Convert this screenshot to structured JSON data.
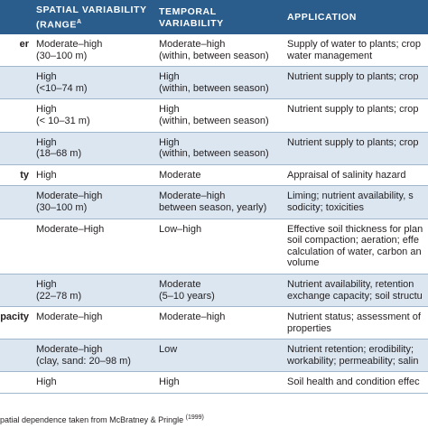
{
  "table": {
    "header": {
      "spatial": {
        "lines": [
          "SPATIAL VARIABILITY",
          "(RANGE"
        ],
        "sup": "A"
      },
      "temporal": {
        "lines": [
          "TEMPORAL",
          "VARIABILITY"
        ]
      },
      "application": "APPLICATION"
    },
    "rows": [
      {
        "property": "er",
        "spatial": [
          "Moderate–high",
          "(30–100 m)"
        ],
        "temporal": [
          "Moderate–high",
          "(within, between season)"
        ],
        "application": [
          "Supply of water to plants; crop",
          "water management"
        ]
      },
      {
        "spatial": [
          "High",
          "(<10–74 m)"
        ],
        "temporal": [
          "High",
          "(within, between season)"
        ],
        "application": [
          "Nutrient supply to plants; crop"
        ]
      },
      {
        "spatial": [
          "High",
          "(< 10–31 m)"
        ],
        "temporal": [
          "High",
          "(within, between season)"
        ],
        "application": [
          "Nutrient supply to plants; crop"
        ]
      },
      {
        "spatial": [
          "High",
          "(18–68 m)"
        ],
        "temporal": [
          "High",
          "(within, between season)"
        ],
        "application": [
          "Nutrient supply to plants; crop"
        ]
      },
      {
        "property": "ty",
        "spatial": [
          "High"
        ],
        "temporal": [
          "Moderate"
        ],
        "application": [
          "Appraisal of salinity hazard"
        ]
      },
      {
        "spatial": [
          "Moderate–high",
          "(30–100 m)"
        ],
        "temporal": [
          "Moderate–high",
          "between season, yearly)"
        ],
        "application": [
          "Liming; nutrient availability, s",
          "sodicity; toxicities"
        ]
      },
      {
        "spatial": [
          "Moderate–High"
        ],
        "temporal": [
          "Low–high"
        ],
        "application": [
          "Effective soil thickness for plan",
          "soil compaction; aeration; effe",
          "calculation of water, carbon an",
          "volume"
        ]
      },
      {
        "spatial": [
          "High",
          "(22–78 m)"
        ],
        "temporal": [
          "Moderate",
          "(5–10 years)"
        ],
        "application": [
          "Nutrient availability, retention",
          "exchange capacity; soil structu"
        ]
      },
      {
        "property": "pacity",
        "spatial": [
          "Moderate–high"
        ],
        "temporal": [
          "Moderate–high"
        ],
        "application": [
          "Nutrient status; assessment of",
          "properties"
        ]
      },
      {
        "spatial": [
          "Moderate–high",
          "(clay, sand: 20–98 m)"
        ],
        "temporal": [
          "Low"
        ],
        "application": [
          "Nutrient retention; erodibility;",
          "workability; permeability; salin"
        ]
      },
      {
        "spatial": [
          "High"
        ],
        "temporal": [
          "High"
        ],
        "application": [
          "Soil health and condition effec"
        ]
      }
    ]
  },
  "footnote": {
    "text": "patial dependence taken from McBratney & Pringle ",
    "sup": "(1999)"
  }
}
